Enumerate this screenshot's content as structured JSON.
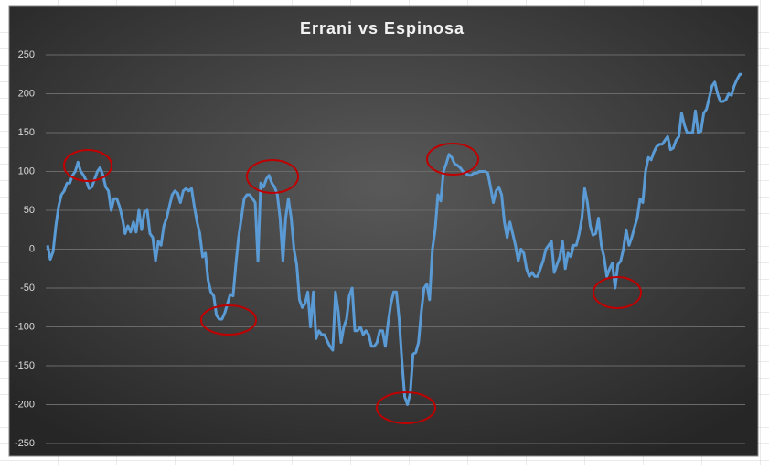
{
  "chart_data": {
    "type": "line",
    "title": "Errani vs Espinosa",
    "color": "#5b9bd5",
    "grid": true,
    "ylim": [
      -250,
      250
    ],
    "yticks": [
      250,
      200,
      150,
      100,
      50,
      0,
      -50,
      -100,
      -150,
      -200,
      -250
    ],
    "values": [
      5,
      -13,
      -3,
      30,
      55,
      70,
      75,
      85,
      85,
      95,
      100,
      112,
      100,
      95,
      88,
      78,
      80,
      90,
      100,
      105,
      95,
      80,
      75,
      50,
      65,
      65,
      55,
      40,
      20,
      30,
      22,
      35,
      22,
      50,
      25,
      48,
      50,
      20,
      15,
      -15,
      10,
      5,
      30,
      40,
      55,
      70,
      75,
      72,
      60,
      75,
      78,
      75,
      78,
      55,
      35,
      20,
      -10,
      -5,
      -40,
      -55,
      -60,
      -85,
      -90,
      -90,
      -82,
      -70,
      -58,
      -60,
      -20,
      15,
      40,
      65,
      70,
      70,
      65,
      60,
      -15,
      85,
      80,
      90,
      95,
      85,
      80,
      70,
      40,
      -15,
      40,
      65,
      40,
      0,
      -20,
      -65,
      -75,
      -70,
      -55,
      -100,
      -55,
      -115,
      -105,
      -110,
      -110,
      -118,
      -125,
      -130,
      -55,
      -80,
      -120,
      -100,
      -90,
      -60,
      -50,
      -105,
      -105,
      -100,
      -110,
      -105,
      -110,
      -125,
      -125,
      -120,
      -105,
      -105,
      -125,
      -95,
      -70,
      -55,
      -55,
      -90,
      -145,
      -190,
      -200,
      -185,
      -135,
      -133,
      -120,
      -80,
      -50,
      -45,
      -65,
      0,
      25,
      70,
      62,
      100,
      110,
      122,
      118,
      110,
      108,
      105,
      100,
      98,
      95,
      95,
      98,
      98,
      100,
      100,
      100,
      98,
      80,
      60,
      75,
      80,
      70,
      35,
      15,
      35,
      20,
      5,
      -15,
      0,
      -5,
      -25,
      -35,
      -30,
      -35,
      -35,
      -25,
      -15,
      0,
      5,
      10,
      -30,
      -20,
      -10,
      10,
      -25,
      -5,
      -10,
      5,
      5,
      20,
      40,
      78,
      60,
      30,
      18,
      20,
      40,
      5,
      -10,
      -35,
      -25,
      -18,
      -50,
      -20,
      -15,
      0,
      25,
      5,
      15,
      28,
      40,
      65,
      60,
      100,
      118,
      115,
      125,
      132,
      135,
      135,
      140,
      145,
      128,
      130,
      140,
      145,
      175,
      160,
      150,
      150,
      150,
      178,
      150,
      152,
      175,
      180,
      195,
      210,
      215,
      200,
      190,
      190,
      192,
      200,
      198,
      210,
      218,
      225,
      225
    ]
  }
}
